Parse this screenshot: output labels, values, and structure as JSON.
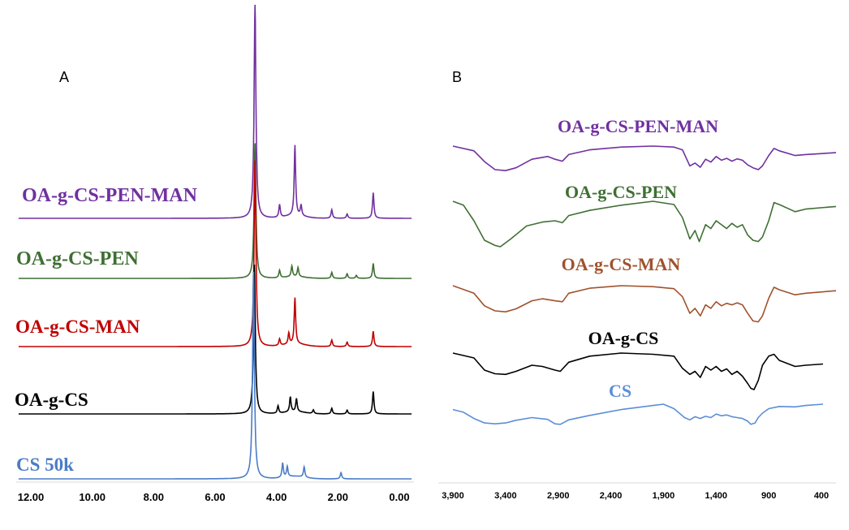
{
  "chart_data": [
    {
      "type": "line",
      "panel_label": "A",
      "xlim": [
        12.0,
        0.0
      ],
      "x_reversed": true,
      "x_ticks": [
        "12.00",
        "10.00",
        "8.00",
        "6.00",
        "4.00",
        "2.00",
        "0.00"
      ],
      "grid": false,
      "legend": "labels placed left of each trace",
      "series": [
        {
          "name": "OA-g-CS-PEN-MAN",
          "color": "#7030A0",
          "peaks": [
            {
              "x": 4.7,
              "h": 1.0
            },
            {
              "x": 3.9,
              "h": 0.06
            },
            {
              "x": 3.4,
              "h": 0.33
            },
            {
              "x": 3.2,
              "h": 0.05
            },
            {
              "x": 2.2,
              "h": 0.04
            },
            {
              "x": 1.7,
              "h": 0.02
            },
            {
              "x": 0.85,
              "h": 0.12
            }
          ]
        },
        {
          "name": "OA-g-CS-PEN",
          "color": "#3F6F33",
          "peaks": [
            {
              "x": 4.7,
              "h": 0.9
            },
            {
              "x": 3.9,
              "h": 0.05
            },
            {
              "x": 3.5,
              "h": 0.07
            },
            {
              "x": 3.3,
              "h": 0.06
            },
            {
              "x": 2.2,
              "h": 0.04
            },
            {
              "x": 1.7,
              "h": 0.03
            },
            {
              "x": 1.4,
              "h": 0.02
            },
            {
              "x": 0.85,
              "h": 0.1
            }
          ]
        },
        {
          "name": "OA-g-CS-MAN",
          "color": "#C00000",
          "peaks": [
            {
              "x": 4.7,
              "h": 0.85
            },
            {
              "x": 3.9,
              "h": 0.03
            },
            {
              "x": 3.6,
              "h": 0.05
            },
            {
              "x": 3.4,
              "h": 0.21
            },
            {
              "x": 2.2,
              "h": 0.03
            },
            {
              "x": 1.7,
              "h": 0.02
            },
            {
              "x": 0.85,
              "h": 0.07
            }
          ]
        },
        {
          "name": "OA-g-CS",
          "color": "#000000",
          "peaks": [
            {
              "x": 4.72,
              "h": 0.8
            },
            {
              "x": 3.95,
              "h": 0.04
            },
            {
              "x": 3.55,
              "h": 0.08
            },
            {
              "x": 3.35,
              "h": 0.07
            },
            {
              "x": 2.8,
              "h": 0.02
            },
            {
              "x": 2.2,
              "h": 0.03
            },
            {
              "x": 1.7,
              "h": 0.02
            },
            {
              "x": 0.85,
              "h": 0.12
            }
          ]
        },
        {
          "name": "CS 50k",
          "color": "#4A7CC7",
          "peaks": [
            {
              "x": 4.75,
              "h": 1.0
            },
            {
              "x": 3.8,
              "h": 0.07
            },
            {
              "x": 3.65,
              "h": 0.05
            },
            {
              "x": 3.1,
              "h": 0.05
            },
            {
              "x": 1.9,
              "h": 0.03
            }
          ]
        }
      ]
    },
    {
      "type": "line",
      "panel_label": "B",
      "xlim": [
        3900,
        400
      ],
      "x_reversed": true,
      "x_ticks": [
        "3,900",
        "3,400",
        "2,900",
        "2,400",
        "1,900",
        "1,400",
        "900",
        "400"
      ],
      "grid": false,
      "legend": "labels placed above each trace",
      "series": [
        {
          "name": "OA-g-CS-PEN-MAN",
          "color": "#7030A0",
          "points": [
            [
              3900,
              0.0
            ],
            [
              3700,
              0.1
            ],
            [
              3600,
              0.33
            ],
            [
              3500,
              0.5
            ],
            [
              3400,
              0.52
            ],
            [
              3300,
              0.46
            ],
            [
              3150,
              0.28
            ],
            [
              3000,
              0.22
            ],
            [
              2930,
              0.28
            ],
            [
              2860,
              0.32
            ],
            [
              2800,
              0.18
            ],
            [
              2600,
              0.08
            ],
            [
              2300,
              0.02
            ],
            [
              2000,
              0.0
            ],
            [
              1800,
              0.02
            ],
            [
              1720,
              0.08
            ],
            [
              1650,
              0.42
            ],
            [
              1600,
              0.36
            ],
            [
              1550,
              0.45
            ],
            [
              1500,
              0.28
            ],
            [
              1450,
              0.34
            ],
            [
              1400,
              0.22
            ],
            [
              1350,
              0.3
            ],
            [
              1300,
              0.26
            ],
            [
              1250,
              0.32
            ],
            [
              1200,
              0.27
            ],
            [
              1150,
              0.3
            ],
            [
              1100,
              0.4
            ],
            [
              1050,
              0.46
            ],
            [
              1000,
              0.5
            ],
            [
              960,
              0.42
            ],
            [
              900,
              0.2
            ],
            [
              850,
              0.05
            ],
            [
              800,
              0.1
            ],
            [
              650,
              0.2
            ],
            [
              550,
              0.18
            ],
            [
              400,
              0.14
            ]
          ]
        },
        {
          "name": "OA-g-CS-PEN",
          "color": "#3F6F33",
          "points": [
            [
              3900,
              0.0
            ],
            [
              3800,
              0.06
            ],
            [
              3700,
              0.3
            ],
            [
              3600,
              0.6
            ],
            [
              3500,
              0.68
            ],
            [
              3450,
              0.7
            ],
            [
              3350,
              0.58
            ],
            [
              3200,
              0.38
            ],
            [
              3050,
              0.32
            ],
            [
              2930,
              0.3
            ],
            [
              2860,
              0.33
            ],
            [
              2800,
              0.22
            ],
            [
              2600,
              0.14
            ],
            [
              2300,
              0.06
            ],
            [
              2000,
              0.0
            ],
            [
              1800,
              0.05
            ],
            [
              1720,
              0.25
            ],
            [
              1650,
              0.58
            ],
            [
              1600,
              0.45
            ],
            [
              1560,
              0.62
            ],
            [
              1500,
              0.36
            ],
            [
              1450,
              0.42
            ],
            [
              1400,
              0.3
            ],
            [
              1300,
              0.42
            ],
            [
              1250,
              0.34
            ],
            [
              1200,
              0.4
            ],
            [
              1150,
              0.36
            ],
            [
              1100,
              0.52
            ],
            [
              1050,
              0.6
            ],
            [
              1000,
              0.62
            ],
            [
              960,
              0.55
            ],
            [
              900,
              0.3
            ],
            [
              850,
              0.02
            ],
            [
              800,
              0.05
            ],
            [
              650,
              0.16
            ],
            [
              550,
              0.12
            ],
            [
              400,
              0.08
            ]
          ]
        },
        {
          "name": "OA-g-CS-MAN",
          "color": "#A0522D",
          "points": [
            [
              3900,
              0.0
            ],
            [
              3700,
              0.15
            ],
            [
              3600,
              0.4
            ],
            [
              3500,
              0.5
            ],
            [
              3400,
              0.52
            ],
            [
              3300,
              0.46
            ],
            [
              3150,
              0.3
            ],
            [
              3050,
              0.26
            ],
            [
              2930,
              0.3
            ],
            [
              2860,
              0.32
            ],
            [
              2800,
              0.15
            ],
            [
              2600,
              0.05
            ],
            [
              2300,
              0.0
            ],
            [
              2000,
              0.02
            ],
            [
              1800,
              0.06
            ],
            [
              1720,
              0.22
            ],
            [
              1650,
              0.55
            ],
            [
              1600,
              0.45
            ],
            [
              1550,
              0.6
            ],
            [
              1500,
              0.38
            ],
            [
              1450,
              0.45
            ],
            [
              1400,
              0.32
            ],
            [
              1350,
              0.4
            ],
            [
              1300,
              0.35
            ],
            [
              1250,
              0.38
            ],
            [
              1200,
              0.34
            ],
            [
              1150,
              0.38
            ],
            [
              1100,
              0.55
            ],
            [
              1050,
              0.7
            ],
            [
              1000,
              0.72
            ],
            [
              960,
              0.6
            ],
            [
              900,
              0.25
            ],
            [
              850,
              0.03
            ],
            [
              800,
              0.08
            ],
            [
              650,
              0.18
            ],
            [
              550,
              0.15
            ],
            [
              400,
              0.1
            ]
          ]
        },
        {
          "name": "OA-g-CS",
          "color": "#000000",
          "points": [
            [
              3900,
              0.0
            ],
            [
              3700,
              0.08
            ],
            [
              3600,
              0.28
            ],
            [
              3500,
              0.34
            ],
            [
              3400,
              0.35
            ],
            [
              3300,
              0.3
            ],
            [
              3150,
              0.2
            ],
            [
              3050,
              0.22
            ],
            [
              2930,
              0.28
            ],
            [
              2880,
              0.3
            ],
            [
              2800,
              0.15
            ],
            [
              2600,
              0.05
            ],
            [
              2300,
              0.0
            ],
            [
              2000,
              0.02
            ],
            [
              1800,
              0.05
            ],
            [
              1720,
              0.25
            ],
            [
              1650,
              0.35
            ],
            [
              1600,
              0.3
            ],
            [
              1550,
              0.4
            ],
            [
              1500,
              0.22
            ],
            [
              1450,
              0.28
            ],
            [
              1400,
              0.22
            ],
            [
              1350,
              0.3
            ],
            [
              1300,
              0.26
            ],
            [
              1250,
              0.35
            ],
            [
              1200,
              0.3
            ],
            [
              1150,
              0.38
            ],
            [
              1100,
              0.5
            ],
            [
              1070,
              0.58
            ],
            [
              1040,
              0.6
            ],
            [
              1000,
              0.45
            ],
            [
              960,
              0.2
            ],
            [
              900,
              0.05
            ],
            [
              850,
              0.02
            ],
            [
              800,
              0.12
            ],
            [
              650,
              0.22
            ],
            [
              550,
              0.2
            ],
            [
              400,
              0.18
            ]
          ]
        },
        {
          "name": "CS",
          "color": "#5B8ED6",
          "points": [
            [
              3900,
              0.12
            ],
            [
              3800,
              0.18
            ],
            [
              3700,
              0.32
            ],
            [
              3600,
              0.42
            ],
            [
              3500,
              0.44
            ],
            [
              3400,
              0.42
            ],
            [
              3300,
              0.36
            ],
            [
              3150,
              0.3
            ],
            [
              3000,
              0.34
            ],
            [
              2930,
              0.44
            ],
            [
              2880,
              0.45
            ],
            [
              2800,
              0.35
            ],
            [
              2600,
              0.25
            ],
            [
              2300,
              0.12
            ],
            [
              2000,
              0.03
            ],
            [
              1900,
              0.0
            ],
            [
              1800,
              0.1
            ],
            [
              1700,
              0.3
            ],
            [
              1650,
              0.35
            ],
            [
              1600,
              0.28
            ],
            [
              1550,
              0.32
            ],
            [
              1500,
              0.27
            ],
            [
              1450,
              0.3
            ],
            [
              1400,
              0.22
            ],
            [
              1350,
              0.26
            ],
            [
              1300,
              0.24
            ],
            [
              1250,
              0.28
            ],
            [
              1200,
              0.3
            ],
            [
              1150,
              0.32
            ],
            [
              1100,
              0.38
            ],
            [
              1070,
              0.45
            ],
            [
              1030,
              0.42
            ],
            [
              1000,
              0.3
            ],
            [
              960,
              0.2
            ],
            [
              900,
              0.1
            ],
            [
              800,
              0.05
            ],
            [
              650,
              0.06
            ],
            [
              550,
              0.03
            ],
            [
              400,
              0.0
            ]
          ]
        }
      ]
    }
  ]
}
